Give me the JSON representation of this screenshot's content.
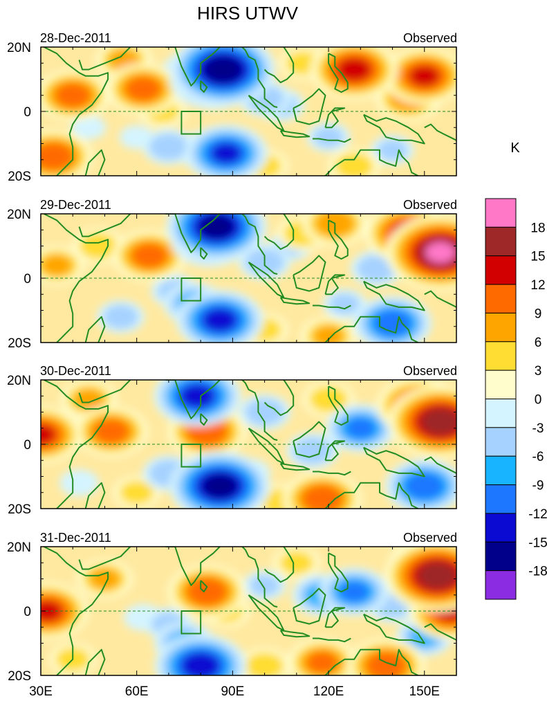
{
  "chart_data": {
    "type": "heatmap",
    "title": "HIRS UTWV",
    "units_label": "K",
    "colorbar": {
      "levels": [
        18,
        15,
        12,
        9,
        6,
        3,
        0,
        -3,
        -6,
        -9,
        -12,
        -15,
        -18
      ],
      "colors": [
        "#ff78c8",
        "#9e2828",
        "#d20000",
        "#ff6a00",
        "#ffa500",
        "#ffdd33",
        "#fffdcc",
        "#d4f4ff",
        "#a6d2ff",
        "#19b4ff",
        "#1e78ff",
        "#0a0ad2",
        "#00008b",
        "#8b2be2"
      ]
    },
    "x_ticks": [
      "30E",
      "60E",
      "90E",
      "120E",
      "150E"
    ],
    "x_tick_values": [
      30,
      60,
      90,
      120,
      150
    ],
    "xlim": [
      30,
      160
    ],
    "y_ticks": [
      "20N",
      "0",
      "20S"
    ],
    "y_tick_values": [
      20,
      0,
      -20
    ],
    "ylim": [
      -20,
      20
    ],
    "box_region": {
      "lon": [
        74,
        80
      ],
      "lat": [
        -7,
        0
      ]
    },
    "panels": [
      {
        "date": "28-Dec-2011",
        "label": "Observed",
        "blobs": [
          {
            "lon": 87,
            "lat": 13,
            "value": -18
          },
          {
            "lon": 84,
            "lat": 10,
            "value": -14
          },
          {
            "lon": 78,
            "lat": 12,
            "value": -9
          },
          {
            "lon": 100,
            "lat": 4,
            "value": -6
          },
          {
            "lon": 105,
            "lat": 2,
            "value": -5
          },
          {
            "lon": 88,
            "lat": -13,
            "value": -13
          },
          {
            "lon": 80,
            "lat": -12,
            "value": -6
          },
          {
            "lon": 70,
            "lat": -11,
            "value": -6
          },
          {
            "lon": 60,
            "lat": -8,
            "value": -2
          },
          {
            "lon": 45,
            "lat": -5,
            "value": -2
          },
          {
            "lon": 40,
            "lat": 5,
            "value": 11
          },
          {
            "lon": 34,
            "lat": -14,
            "value": 12
          },
          {
            "lon": 62,
            "lat": 7,
            "value": 11
          },
          {
            "lon": 68,
            "lat": 0,
            "value": 5
          },
          {
            "lon": 128,
            "lat": 13,
            "value": 14
          },
          {
            "lon": 150,
            "lat": 11,
            "value": 13
          },
          {
            "lon": 145,
            "lat": 4,
            "value": 9
          },
          {
            "lon": 128,
            "lat": -17,
            "value": 6
          },
          {
            "lon": 140,
            "lat": -12,
            "value": -4
          },
          {
            "lon": 120,
            "lat": -8,
            "value": -4
          },
          {
            "lon": 100,
            "lat": -17,
            "value": 5
          },
          {
            "lon": 112,
            "lat": 15,
            "value": 5
          },
          {
            "lon": 56,
            "lat": 16,
            "value": 7
          }
        ]
      },
      {
        "date": "29-Dec-2011",
        "label": "Observed",
        "blobs": [
          {
            "lon": 85,
            "lat": 16,
            "value": -17
          },
          {
            "lon": 83,
            "lat": 12,
            "value": -12
          },
          {
            "lon": 64,
            "lat": 7,
            "value": 11
          },
          {
            "lon": 48,
            "lat": 10,
            "value": 6
          },
          {
            "lon": 35,
            "lat": 4,
            "value": 7
          },
          {
            "lon": 86,
            "lat": -13,
            "value": -14
          },
          {
            "lon": 78,
            "lat": -8,
            "value": -8
          },
          {
            "lon": 72,
            "lat": -4,
            "value": -5
          },
          {
            "lon": 55,
            "lat": -12,
            "value": -5
          },
          {
            "lon": 100,
            "lat": 5,
            "value": -6
          },
          {
            "lon": 108,
            "lat": 10,
            "value": -4
          },
          {
            "lon": 135,
            "lat": 3,
            "value": -6
          },
          {
            "lon": 140,
            "lat": -14,
            "value": -12
          },
          {
            "lon": 125,
            "lat": -8,
            "value": -4
          },
          {
            "lon": 145,
            "lat": 14,
            "value": 14
          },
          {
            "lon": 155,
            "lat": 8,
            "value": 19
          },
          {
            "lon": 122,
            "lat": 17,
            "value": 9
          },
          {
            "lon": 100,
            "lat": -16,
            "value": 5
          },
          {
            "lon": 120,
            "lat": -18,
            "value": 7
          },
          {
            "lon": 112,
            "lat": 14,
            "value": 6
          }
        ]
      },
      {
        "date": "30-Dec-2011",
        "label": "Observed",
        "blobs": [
          {
            "lon": 79,
            "lat": 15,
            "value": -14
          },
          {
            "lon": 82,
            "lat": 4,
            "value": 12
          },
          {
            "lon": 52,
            "lat": 4,
            "value": 11
          },
          {
            "lon": 30,
            "lat": 3,
            "value": 13
          },
          {
            "lon": 45,
            "lat": 14,
            "value": 7
          },
          {
            "lon": 86,
            "lat": -13,
            "value": -17
          },
          {
            "lon": 70,
            "lat": -9,
            "value": -6
          },
          {
            "lon": 95,
            "lat": -9,
            "value": -4
          },
          {
            "lon": 42,
            "lat": -12,
            "value": -3
          },
          {
            "lon": 100,
            "lat": 10,
            "value": -6
          },
          {
            "lon": 130,
            "lat": 5,
            "value": -10
          },
          {
            "lon": 115,
            "lat": -2,
            "value": -6
          },
          {
            "lon": 150,
            "lat": -13,
            "value": -12
          },
          {
            "lon": 155,
            "lat": 7,
            "value": 18
          },
          {
            "lon": 148,
            "lat": 12,
            "value": 13
          },
          {
            "lon": 118,
            "lat": -17,
            "value": 12
          },
          {
            "lon": 105,
            "lat": -18,
            "value": 6
          },
          {
            "lon": 60,
            "lat": -15,
            "value": 5
          },
          {
            "lon": 120,
            "lat": 14,
            "value": 6
          }
        ]
      },
      {
        "date": "31-Dec-2011",
        "label": "Observed",
        "blobs": [
          {
            "lon": 80,
            "lat": -17,
            "value": -15
          },
          {
            "lon": 75,
            "lat": -10,
            "value": -8
          },
          {
            "lon": 70,
            "lat": -4,
            "value": -5
          },
          {
            "lon": 62,
            "lat": -2,
            "value": -3
          },
          {
            "lon": 82,
            "lat": 6,
            "value": 12
          },
          {
            "lon": 88,
            "lat": 0,
            "value": 5
          },
          {
            "lon": 32,
            "lat": 0,
            "value": 13
          },
          {
            "lon": 50,
            "lat": 10,
            "value": 7
          },
          {
            "lon": 40,
            "lat": -15,
            "value": 5
          },
          {
            "lon": 100,
            "lat": 8,
            "value": -4
          },
          {
            "lon": 118,
            "lat": 5,
            "value": -8
          },
          {
            "lon": 128,
            "lat": 6,
            "value": -10
          },
          {
            "lon": 140,
            "lat": 2,
            "value": -6
          },
          {
            "lon": 150,
            "lat": -8,
            "value": -7
          },
          {
            "lon": 154,
            "lat": 11,
            "value": 18
          },
          {
            "lon": 150,
            "lat": 15,
            "value": 10
          },
          {
            "lon": 158,
            "lat": 0,
            "value": 13
          },
          {
            "lon": 138,
            "lat": -17,
            "value": 12
          },
          {
            "lon": 118,
            "lat": -16,
            "value": 10
          },
          {
            "lon": 100,
            "lat": -17,
            "value": 6
          },
          {
            "lon": 110,
            "lat": 15,
            "value": 5
          }
        ]
      }
    ]
  }
}
